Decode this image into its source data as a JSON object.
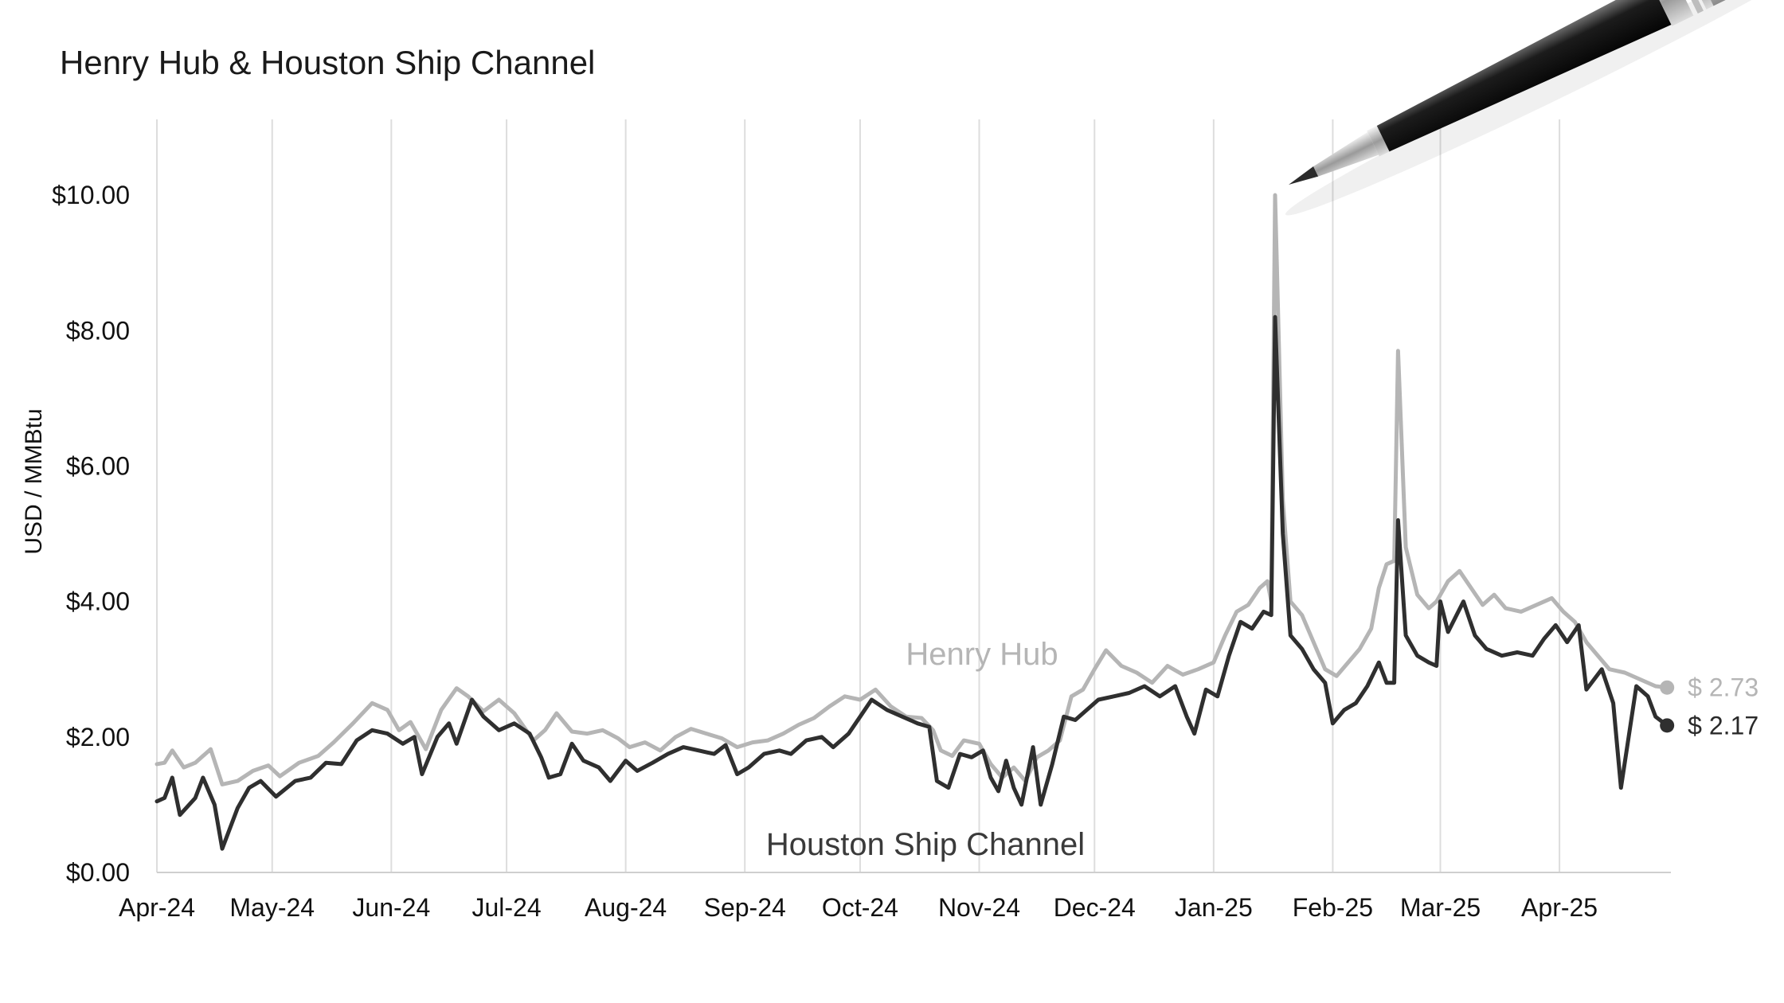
{
  "chart_data": {
    "type": "line",
    "title": "Henry Hub & Houston Ship Channel",
    "ylabel": "USD / MMBtu",
    "xlabel": "",
    "ylim": [
      0,
      11
    ],
    "x_range": [
      "2024-04-01",
      "2025-04-30"
    ],
    "yticks": [
      0,
      2,
      4,
      6,
      8,
      10
    ],
    "ytick_labels": [
      "$0.00",
      "$2.00",
      "$4.00",
      "$6.00",
      "$8.00",
      "$10.00"
    ],
    "xtick_dates": [
      "2024-04-01",
      "2024-05-01",
      "2024-06-01",
      "2024-07-01",
      "2024-08-01",
      "2024-09-01",
      "2024-10-01",
      "2024-11-01",
      "2024-12-01",
      "2025-01-01",
      "2025-02-01",
      "2025-03-01",
      "2025-04-01"
    ],
    "xtick_labels": [
      "Apr-24",
      "May-24",
      "Jun-24",
      "Jul-24",
      "Aug-24",
      "Sep-24",
      "Oct-24",
      "Nov-24",
      "Dec-24",
      "Jan-25",
      "Feb-25",
      "Mar-25",
      "Apr-25"
    ],
    "grid": "vertical",
    "series": [
      {
        "name": "Henry Hub",
        "color": "#b5b5b5",
        "end_label": "$ 2.73",
        "points": [
          [
            "2024-04-01",
            1.6
          ],
          [
            "2024-04-03",
            1.62
          ],
          [
            "2024-04-05",
            1.8
          ],
          [
            "2024-04-08",
            1.55
          ],
          [
            "2024-04-11",
            1.62
          ],
          [
            "2024-04-15",
            1.82
          ],
          [
            "2024-04-18",
            1.3
          ],
          [
            "2024-04-22",
            1.35
          ],
          [
            "2024-04-26",
            1.5
          ],
          [
            "2024-04-30",
            1.58
          ],
          [
            "2024-05-03",
            1.42
          ],
          [
            "2024-05-08",
            1.62
          ],
          [
            "2024-05-13",
            1.72
          ],
          [
            "2024-05-17",
            1.92
          ],
          [
            "2024-05-22",
            2.2
          ],
          [
            "2024-05-27",
            2.5
          ],
          [
            "2024-05-31",
            2.4
          ],
          [
            "2024-06-03",
            2.1
          ],
          [
            "2024-06-06",
            2.22
          ],
          [
            "2024-06-10",
            1.82
          ],
          [
            "2024-06-14",
            2.4
          ],
          [
            "2024-06-18",
            2.72
          ],
          [
            "2024-06-21",
            2.6
          ],
          [
            "2024-06-25",
            2.38
          ],
          [
            "2024-06-29",
            2.55
          ],
          [
            "2024-07-03",
            2.35
          ],
          [
            "2024-07-08",
            1.95
          ],
          [
            "2024-07-11",
            2.1
          ],
          [
            "2024-07-14",
            2.35
          ],
          [
            "2024-07-18",
            2.08
          ],
          [
            "2024-07-22",
            2.05
          ],
          [
            "2024-07-26",
            2.1
          ],
          [
            "2024-07-30",
            1.98
          ],
          [
            "2024-08-02",
            1.85
          ],
          [
            "2024-08-06",
            1.92
          ],
          [
            "2024-08-10",
            1.8
          ],
          [
            "2024-08-14",
            2.0
          ],
          [
            "2024-08-18",
            2.12
          ],
          [
            "2024-08-22",
            2.05
          ],
          [
            "2024-08-26",
            1.98
          ],
          [
            "2024-08-30",
            1.85
          ],
          [
            "2024-09-03",
            1.92
          ],
          [
            "2024-09-07",
            1.95
          ],
          [
            "2024-09-11",
            2.05
          ],
          [
            "2024-09-15",
            2.18
          ],
          [
            "2024-09-19",
            2.28
          ],
          [
            "2024-09-23",
            2.45
          ],
          [
            "2024-09-27",
            2.6
          ],
          [
            "2024-10-01",
            2.55
          ],
          [
            "2024-10-05",
            2.7
          ],
          [
            "2024-10-09",
            2.45
          ],
          [
            "2024-10-13",
            2.3
          ],
          [
            "2024-10-17",
            2.28
          ],
          [
            "2024-10-20",
            2.1
          ],
          [
            "2024-10-22",
            1.8
          ],
          [
            "2024-10-25",
            1.72
          ],
          [
            "2024-10-28",
            1.95
          ],
          [
            "2024-11-01",
            1.9
          ],
          [
            "2024-11-04",
            1.6
          ],
          [
            "2024-11-07",
            1.4
          ],
          [
            "2024-11-10",
            1.55
          ],
          [
            "2024-11-13",
            1.35
          ],
          [
            "2024-11-16",
            1.7
          ],
          [
            "2024-11-19",
            1.8
          ],
          [
            "2024-11-22",
            1.95
          ],
          [
            "2024-11-25",
            2.6
          ],
          [
            "2024-11-28",
            2.7
          ],
          [
            "2024-12-01",
            3.0
          ],
          [
            "2024-12-04",
            3.28
          ],
          [
            "2024-12-08",
            3.05
          ],
          [
            "2024-12-12",
            2.95
          ],
          [
            "2024-12-16",
            2.8
          ],
          [
            "2024-12-20",
            3.05
          ],
          [
            "2024-12-24",
            2.92
          ],
          [
            "2024-12-28",
            3.0
          ],
          [
            "2025-01-01",
            3.1
          ],
          [
            "2025-01-04",
            3.5
          ],
          [
            "2025-01-07",
            3.85
          ],
          [
            "2025-01-10",
            3.95
          ],
          [
            "2025-01-13",
            4.2
          ],
          [
            "2025-01-15",
            4.3
          ],
          [
            "2025-01-16",
            4.0
          ],
          [
            "2025-01-17",
            10.0
          ],
          [
            "2025-01-19",
            5.5
          ],
          [
            "2025-01-21",
            4.0
          ],
          [
            "2025-01-24",
            3.8
          ],
          [
            "2025-01-27",
            3.4
          ],
          [
            "2025-01-30",
            3.0
          ],
          [
            "2025-02-02",
            2.9
          ],
          [
            "2025-02-05",
            3.1
          ],
          [
            "2025-02-08",
            3.3
          ],
          [
            "2025-02-11",
            3.6
          ],
          [
            "2025-02-13",
            4.2
          ],
          [
            "2025-02-15",
            4.55
          ],
          [
            "2025-02-17",
            4.6
          ],
          [
            "2025-02-18",
            7.7
          ],
          [
            "2025-02-20",
            4.8
          ],
          [
            "2025-02-23",
            4.1
          ],
          [
            "2025-02-26",
            3.9
          ],
          [
            "2025-02-28",
            4.0
          ],
          [
            "2025-03-03",
            4.3
          ],
          [
            "2025-03-06",
            4.45
          ],
          [
            "2025-03-09",
            4.2
          ],
          [
            "2025-03-12",
            3.95
          ],
          [
            "2025-03-15",
            4.1
          ],
          [
            "2025-03-18",
            3.9
          ],
          [
            "2025-03-22",
            3.85
          ],
          [
            "2025-03-26",
            3.95
          ],
          [
            "2025-03-30",
            4.05
          ],
          [
            "2025-04-02",
            3.85
          ],
          [
            "2025-04-05",
            3.7
          ],
          [
            "2025-04-08",
            3.4
          ],
          [
            "2025-04-11",
            3.2
          ],
          [
            "2025-04-14",
            3.0
          ],
          [
            "2025-04-18",
            2.95
          ],
          [
            "2025-04-22",
            2.85
          ],
          [
            "2025-04-26",
            2.75
          ],
          [
            "2025-04-29",
            2.73
          ]
        ]
      },
      {
        "name": "Houston Ship Channel",
        "color": "#2f2f2f",
        "end_label": "$ 2.17",
        "points": [
          [
            "2024-04-01",
            1.05
          ],
          [
            "2024-04-03",
            1.1
          ],
          [
            "2024-04-05",
            1.4
          ],
          [
            "2024-04-07",
            0.85
          ],
          [
            "2024-04-11",
            1.1
          ],
          [
            "2024-04-13",
            1.4
          ],
          [
            "2024-04-16",
            1.0
          ],
          [
            "2024-04-18",
            0.35
          ],
          [
            "2024-04-22",
            0.95
          ],
          [
            "2024-04-25",
            1.25
          ],
          [
            "2024-04-28",
            1.35
          ],
          [
            "2024-05-02",
            1.12
          ],
          [
            "2024-05-07",
            1.35
          ],
          [
            "2024-05-11",
            1.4
          ],
          [
            "2024-05-15",
            1.62
          ],
          [
            "2024-05-19",
            1.6
          ],
          [
            "2024-05-23",
            1.95
          ],
          [
            "2024-05-27",
            2.1
          ],
          [
            "2024-05-31",
            2.05
          ],
          [
            "2024-06-04",
            1.9
          ],
          [
            "2024-06-07",
            2.0
          ],
          [
            "2024-06-09",
            1.45
          ],
          [
            "2024-06-13",
            2.0
          ],
          [
            "2024-06-16",
            2.2
          ],
          [
            "2024-06-18",
            1.9
          ],
          [
            "2024-06-22",
            2.55
          ],
          [
            "2024-06-25",
            2.3
          ],
          [
            "2024-06-29",
            2.1
          ],
          [
            "2024-07-03",
            2.2
          ],
          [
            "2024-07-07",
            2.05
          ],
          [
            "2024-07-10",
            1.7
          ],
          [
            "2024-07-12",
            1.4
          ],
          [
            "2024-07-15",
            1.45
          ],
          [
            "2024-07-18",
            1.9
          ],
          [
            "2024-07-21",
            1.65
          ],
          [
            "2024-07-25",
            1.55
          ],
          [
            "2024-07-28",
            1.35
          ],
          [
            "2024-08-01",
            1.65
          ],
          [
            "2024-08-04",
            1.5
          ],
          [
            "2024-08-08",
            1.62
          ],
          [
            "2024-08-12",
            1.75
          ],
          [
            "2024-08-16",
            1.85
          ],
          [
            "2024-08-20",
            1.8
          ],
          [
            "2024-08-24",
            1.75
          ],
          [
            "2024-08-27",
            1.88
          ],
          [
            "2024-08-30",
            1.45
          ],
          [
            "2024-09-02",
            1.55
          ],
          [
            "2024-09-06",
            1.75
          ],
          [
            "2024-09-10",
            1.8
          ],
          [
            "2024-09-13",
            1.75
          ],
          [
            "2024-09-17",
            1.95
          ],
          [
            "2024-09-21",
            2.0
          ],
          [
            "2024-09-24",
            1.85
          ],
          [
            "2024-09-28",
            2.05
          ],
          [
            "2024-10-01",
            2.3
          ],
          [
            "2024-10-04",
            2.55
          ],
          [
            "2024-10-08",
            2.4
          ],
          [
            "2024-10-12",
            2.3
          ],
          [
            "2024-10-16",
            2.2
          ],
          [
            "2024-10-19",
            2.15
          ],
          [
            "2024-10-21",
            1.35
          ],
          [
            "2024-10-24",
            1.25
          ],
          [
            "2024-10-27",
            1.75
          ],
          [
            "2024-10-30",
            1.7
          ],
          [
            "2024-11-02",
            1.8
          ],
          [
            "2024-11-04",
            1.4
          ],
          [
            "2024-11-06",
            1.2
          ],
          [
            "2024-11-08",
            1.65
          ],
          [
            "2024-11-10",
            1.25
          ],
          [
            "2024-11-12",
            1.0
          ],
          [
            "2024-11-15",
            1.85
          ],
          [
            "2024-11-17",
            1.0
          ],
          [
            "2024-11-20",
            1.6
          ],
          [
            "2024-11-23",
            2.3
          ],
          [
            "2024-11-26",
            2.25
          ],
          [
            "2024-11-29",
            2.4
          ],
          [
            "2024-12-02",
            2.55
          ],
          [
            "2024-12-06",
            2.6
          ],
          [
            "2024-12-10",
            2.65
          ],
          [
            "2024-12-14",
            2.75
          ],
          [
            "2024-12-18",
            2.6
          ],
          [
            "2024-12-22",
            2.75
          ],
          [
            "2024-12-25",
            2.3
          ],
          [
            "2024-12-27",
            2.05
          ],
          [
            "2024-12-30",
            2.7
          ],
          [
            "2025-01-02",
            2.6
          ],
          [
            "2025-01-05",
            3.2
          ],
          [
            "2025-01-08",
            3.7
          ],
          [
            "2025-01-11",
            3.6
          ],
          [
            "2025-01-14",
            3.85
          ],
          [
            "2025-01-16",
            3.8
          ],
          [
            "2025-01-17",
            8.2
          ],
          [
            "2025-01-19",
            5.0
          ],
          [
            "2025-01-21",
            3.5
          ],
          [
            "2025-01-24",
            3.3
          ],
          [
            "2025-01-27",
            3.0
          ],
          [
            "2025-01-30",
            2.8
          ],
          [
            "2025-02-01",
            2.2
          ],
          [
            "2025-02-04",
            2.4
          ],
          [
            "2025-02-07",
            2.5
          ],
          [
            "2025-02-10",
            2.75
          ],
          [
            "2025-02-13",
            3.1
          ],
          [
            "2025-02-15",
            2.8
          ],
          [
            "2025-02-17",
            2.8
          ],
          [
            "2025-02-18",
            5.2
          ],
          [
            "2025-02-20",
            3.5
          ],
          [
            "2025-02-23",
            3.2
          ],
          [
            "2025-02-26",
            3.1
          ],
          [
            "2025-02-28",
            3.05
          ],
          [
            "2025-03-01",
            4.0
          ],
          [
            "2025-03-03",
            3.55
          ],
          [
            "2025-03-07",
            4.0
          ],
          [
            "2025-03-10",
            3.5
          ],
          [
            "2025-03-13",
            3.3
          ],
          [
            "2025-03-17",
            3.2
          ],
          [
            "2025-03-21",
            3.25
          ],
          [
            "2025-03-25",
            3.2
          ],
          [
            "2025-03-28",
            3.45
          ],
          [
            "2025-03-31",
            3.65
          ],
          [
            "2025-04-03",
            3.4
          ],
          [
            "2025-04-06",
            3.65
          ],
          [
            "2025-04-08",
            2.7
          ],
          [
            "2025-04-12",
            3.0
          ],
          [
            "2025-04-15",
            2.5
          ],
          [
            "2025-04-17",
            1.25
          ],
          [
            "2025-04-21",
            2.75
          ],
          [
            "2025-04-24",
            2.6
          ],
          [
            "2025-04-26",
            2.3
          ],
          [
            "2025-04-29",
            2.17
          ]
        ]
      }
    ]
  }
}
